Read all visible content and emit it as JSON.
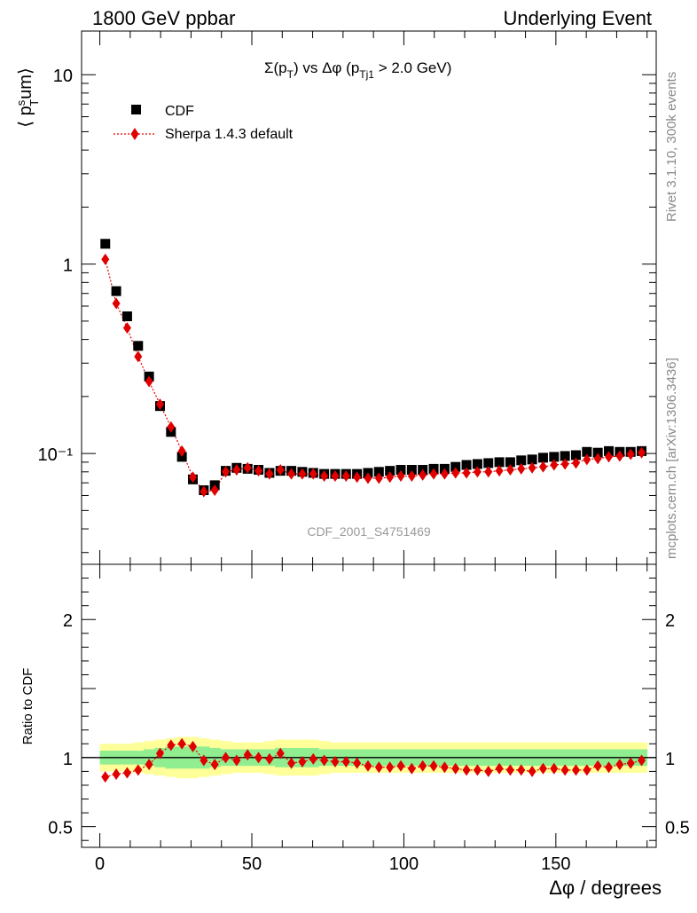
{
  "header": {
    "left": "1800 GeV ppbar",
    "right": "Underlying Event"
  },
  "side": {
    "rivet": "Rivet 3.1.10,  300k events",
    "mcplots": "mcplots.cern.ch [arXiv:1306.3436]"
  },
  "chart_data": [
    {
      "type": "scatter",
      "title": "Σ(p_T) vs Δφ (p_Tj1 > 2.0 GeV)",
      "ylabel": "⟨ p_T^sum ⟩",
      "yscale": "log",
      "ylim": [
        0.026,
        17
      ],
      "xlim": [
        -6,
        183
      ],
      "yticks": [
        {
          "v": 0.1,
          "label": "10⁻¹"
        },
        {
          "v": 1,
          "label": "1"
        },
        {
          "v": 10,
          "label": "10"
        }
      ],
      "annotation": "CDF_2001_S4751469",
      "legend_position": "top-left",
      "series": [
        {
          "name": "CDF",
          "color": "#000000",
          "marker": "square",
          "x": [
            1.8,
            5.4,
            9.0,
            12.6,
            16.2,
            19.8,
            23.4,
            27.0,
            30.6,
            34.2,
            37.8,
            41.4,
            45.0,
            48.6,
            52.2,
            55.8,
            59.4,
            63.0,
            66.6,
            70.2,
            73.8,
            77.4,
            81.0,
            84.6,
            88.2,
            91.8,
            95.4,
            99.0,
            102.6,
            106.2,
            109.8,
            113.4,
            117.0,
            120.6,
            124.2,
            127.8,
            131.4,
            135.0,
            138.6,
            142.2,
            145.8,
            149.4,
            153.0,
            156.6,
            160.2,
            163.8,
            167.4,
            171.0,
            174.6,
            178.2
          ],
          "y": [
            1.28,
            0.72,
            0.53,
            0.37,
            0.255,
            0.178,
            0.13,
            0.096,
            0.073,
            0.064,
            0.068,
            0.081,
            0.084,
            0.083,
            0.082,
            0.079,
            0.081,
            0.081,
            0.08,
            0.079,
            0.078,
            0.078,
            0.078,
            0.078,
            0.079,
            0.08,
            0.081,
            0.082,
            0.082,
            0.082,
            0.083,
            0.083,
            0.085,
            0.087,
            0.088,
            0.089,
            0.09,
            0.09,
            0.092,
            0.093,
            0.095,
            0.096,
            0.097,
            0.098,
            0.102,
            0.101,
            0.103,
            0.102,
            0.102,
            0.103
          ]
        },
        {
          "name": "Sherpa 1.4.3 default",
          "color": "#e00000",
          "marker": "diamond",
          "line": "dotted",
          "x": [
            1.8,
            5.4,
            9.0,
            12.6,
            16.2,
            19.8,
            23.4,
            27.0,
            30.6,
            34.2,
            37.8,
            41.4,
            45.0,
            48.6,
            52.2,
            55.8,
            59.4,
            63.0,
            66.6,
            70.2,
            73.8,
            77.4,
            81.0,
            84.6,
            88.2,
            91.8,
            95.4,
            99.0,
            102.6,
            106.2,
            109.8,
            113.4,
            117.0,
            120.6,
            124.2,
            127.8,
            131.4,
            135.0,
            138.6,
            142.2,
            145.8,
            149.4,
            153.0,
            156.6,
            160.2,
            163.8,
            167.4,
            171.0,
            174.6,
            178.2
          ],
          "y": [
            1.06,
            0.62,
            0.46,
            0.325,
            0.24,
            0.182,
            0.138,
            0.103,
            0.075,
            0.063,
            0.064,
            0.08,
            0.082,
            0.084,
            0.081,
            0.078,
            0.082,
            0.078,
            0.078,
            0.078,
            0.076,
            0.076,
            0.076,
            0.075,
            0.074,
            0.074,
            0.075,
            0.076,
            0.076,
            0.077,
            0.078,
            0.078,
            0.079,
            0.079,
            0.08,
            0.08,
            0.081,
            0.082,
            0.083,
            0.084,
            0.085,
            0.087,
            0.088,
            0.089,
            0.093,
            0.094,
            0.096,
            0.097,
            0.099,
            0.101
          ]
        }
      ]
    },
    {
      "type": "scatter",
      "ylabel": "Ratio to CDF",
      "xlabel": "Δφ / degrees",
      "ylim": [
        0.35,
        2.4
      ],
      "xlim": [
        -6,
        183
      ],
      "xticks": [
        0,
        50,
        100,
        150
      ],
      "yticks": [
        0.5,
        1,
        2
      ],
      "reference_line": 1,
      "bands": {
        "colors": {
          "inner": "#90ee90",
          "outer": "#ffff99"
        },
        "x": [
          0,
          3.6,
          7.2,
          10.8,
          14.4,
          18.0,
          21.6,
          25.2,
          28.8,
          32.4,
          36.0,
          39.6,
          43.2,
          46.8,
          50.4,
          54.0,
          57.6,
          61.2,
          64.8,
          68.4,
          72.0,
          75.6,
          79.2,
          82.8,
          86.4,
          90.0,
          93.6,
          97.2,
          100.8,
          104.4,
          108.0,
          111.6,
          115.2,
          118.8,
          122.4,
          126.0,
          129.6,
          133.2,
          136.8,
          140.4,
          144.0,
          147.6,
          151.2,
          154.8,
          158.4,
          162.0,
          165.6,
          169.2,
          172.8,
          176.4,
          180.0
        ],
        "inner": [
          0.05,
          0.05,
          0.05,
          0.05,
          0.06,
          0.07,
          0.08,
          0.08,
          0.08,
          0.08,
          0.07,
          0.06,
          0.06,
          0.06,
          0.06,
          0.06,
          0.07,
          0.07,
          0.07,
          0.07,
          0.06,
          0.06,
          0.06,
          0.06,
          0.06,
          0.06,
          0.06,
          0.06,
          0.06,
          0.06,
          0.06,
          0.06,
          0.06,
          0.06,
          0.06,
          0.06,
          0.06,
          0.06,
          0.06,
          0.06,
          0.06,
          0.06,
          0.06,
          0.06,
          0.06,
          0.06,
          0.06,
          0.06,
          0.06,
          0.06
        ],
        "outer": [
          0.1,
          0.1,
          0.1,
          0.11,
          0.12,
          0.13,
          0.14,
          0.15,
          0.15,
          0.14,
          0.13,
          0.12,
          0.11,
          0.11,
          0.11,
          0.12,
          0.13,
          0.13,
          0.13,
          0.13,
          0.12,
          0.11,
          0.11,
          0.11,
          0.11,
          0.11,
          0.11,
          0.11,
          0.11,
          0.11,
          0.11,
          0.11,
          0.11,
          0.11,
          0.11,
          0.11,
          0.11,
          0.11,
          0.11,
          0.11,
          0.11,
          0.11,
          0.11,
          0.11,
          0.11,
          0.11,
          0.11,
          0.11,
          0.11,
          0.11
        ]
      },
      "series": [
        {
          "name": "Sherpa 1.4.3 default",
          "color": "#e00000",
          "marker": "diamond",
          "line": "dotted",
          "x": [
            1.8,
            5.4,
            9.0,
            12.6,
            16.2,
            19.8,
            23.4,
            27.0,
            30.6,
            34.2,
            37.8,
            41.4,
            45.0,
            48.6,
            52.2,
            55.8,
            59.4,
            63.0,
            66.6,
            70.2,
            73.8,
            77.4,
            81.0,
            84.6,
            88.2,
            91.8,
            95.4,
            99.0,
            102.6,
            106.2,
            109.8,
            113.4,
            117.0,
            120.6,
            124.2,
            127.8,
            131.4,
            135.0,
            138.6,
            142.2,
            145.8,
            149.4,
            153.0,
            156.6,
            160.2,
            163.8,
            167.4,
            171.0,
            174.6,
            178.2
          ],
          "y": [
            0.86,
            0.88,
            0.89,
            0.91,
            0.95,
            1.03,
            1.09,
            1.1,
            1.08,
            0.98,
            0.95,
            1.0,
            0.98,
            1.02,
            1.0,
            0.99,
            1.03,
            0.96,
            0.97,
            0.99,
            0.98,
            0.97,
            0.97,
            0.96,
            0.94,
            0.93,
            0.93,
            0.94,
            0.92,
            0.94,
            0.94,
            0.93,
            0.92,
            0.91,
            0.91,
            0.9,
            0.92,
            0.91,
            0.91,
            0.9,
            0.92,
            0.92,
            0.91,
            0.91,
            0.91,
            0.94,
            0.93,
            0.95,
            0.96,
            0.98
          ]
        }
      ]
    }
  ]
}
